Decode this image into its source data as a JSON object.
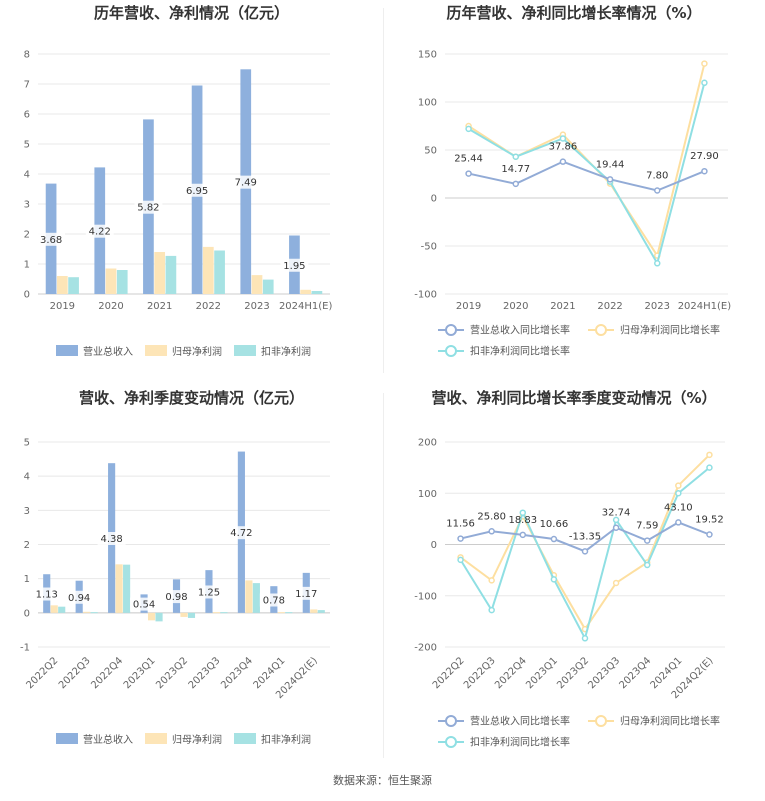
{
  "source": "数据来源：恒生聚源",
  "colors": {
    "revenue": "#8eb0dd",
    "netprofit": "#fde5b7",
    "deducted": "#a6e2e3",
    "revenue_line": "#92abd6",
    "netprofit_line": "#fddfa0",
    "deducted_line": "#8fdfe3"
  },
  "chart_data": [
    {
      "type": "bar",
      "title": "历年营收、净利情况（亿元）",
      "categories": [
        "2019",
        "2020",
        "2021",
        "2022",
        "2023",
        "2024H1(E)"
      ],
      "ylim": [
        0,
        8
      ],
      "yticks": [
        0,
        1,
        2,
        3,
        4,
        5,
        6,
        7,
        8
      ],
      "series": [
        {
          "name": "营业总收入",
          "values": [
            3.68,
            4.22,
            5.82,
            6.95,
            7.49,
            1.95
          ],
          "labels": [
            "3.68",
            "4.22",
            "5.82",
            "6.95",
            "7.49",
            "1.95"
          ]
        },
        {
          "name": "归母净利润",
          "values": [
            0.6,
            0.85,
            1.4,
            1.57,
            0.63,
            0.14
          ]
        },
        {
          "name": "扣非净利润",
          "values": [
            0.56,
            0.8,
            1.27,
            1.45,
            0.48,
            0.1
          ]
        }
      ],
      "legend_position": "bottom"
    },
    {
      "type": "line",
      "title": "历年营收、净利同比增长率情况（%）",
      "categories": [
        "2019",
        "2020",
        "2021",
        "2022",
        "2023",
        "2024H1(E)"
      ],
      "ylim": [
        -100,
        150
      ],
      "yticks": [
        -100,
        -50,
        0,
        50,
        100,
        150
      ],
      "series": [
        {
          "name": "营业总收入同比增长率",
          "values": [
            25.44,
            14.77,
            37.86,
            19.44,
            7.8,
            27.9
          ],
          "labels": [
            "25.44",
            "14.77",
            "37.86",
            "19.44",
            "7.80",
            "27.90"
          ]
        },
        {
          "name": "归母净利润同比增长率",
          "values": [
            75,
            43,
            66,
            15,
            -60,
            140
          ]
        },
        {
          "name": "扣非净利润同比增长率",
          "values": [
            72,
            43,
            62,
            17,
            -68,
            120
          ]
        }
      ],
      "legend_position": "bottom"
    },
    {
      "type": "bar",
      "title": "营收、净利季度变动情况（亿元）",
      "categories": [
        "2022Q2",
        "2022Q3",
        "2022Q4",
        "2023Q1",
        "2023Q2",
        "2023Q3",
        "2023Q4",
        "2024Q1",
        "2024Q2(E)"
      ],
      "ylim": [
        -1,
        5
      ],
      "yticks": [
        -1,
        0,
        1,
        2,
        3,
        4,
        5
      ],
      "series": [
        {
          "name": "营业总收入",
          "values": [
            1.13,
            0.94,
            4.38,
            0.54,
            0.98,
            1.25,
            4.72,
            0.78,
            1.17
          ],
          "labels": [
            "1.13",
            "0.94",
            "4.38",
            "0.54",
            "0.98",
            "1.25",
            "4.72",
            "0.78",
            "1.17"
          ]
        },
        {
          "name": "归母净利润",
          "values": [
            0.22,
            0.03,
            1.42,
            -0.22,
            -0.12,
            0.02,
            0.95,
            0.02,
            0.1
          ]
        },
        {
          "name": "扣非净利润",
          "values": [
            0.18,
            0.02,
            1.41,
            -0.25,
            -0.15,
            0.02,
            0.87,
            0.02,
            0.08
          ]
        }
      ],
      "legend_position": "bottom"
    },
    {
      "type": "line",
      "title": "营收、净利同比增长率季度变动情况（%）",
      "categories": [
        "2022Q2",
        "2022Q3",
        "2022Q4",
        "2023Q1",
        "2023Q2",
        "2023Q3",
        "2023Q4",
        "2024Q1",
        "2024Q2(E)"
      ],
      "ylim": [
        -200,
        200
      ],
      "yticks": [
        -200,
        -100,
        0,
        100,
        200
      ],
      "series": [
        {
          "name": "营业总收入同比增长率",
          "values": [
            11.56,
            25.8,
            18.83,
            10.66,
            -13.35,
            32.74,
            7.59,
            43.1,
            19.52
          ],
          "labels": [
            "11.56",
            "25.80",
            "18.83",
            "10.66",
            "-13.35",
            "32.74",
            "7.59",
            "43.10",
            "19.52"
          ]
        },
        {
          "name": "归母净利润同比增长率",
          "values": [
            -25,
            -70,
            55,
            -60,
            -165,
            -75,
            -35,
            115,
            175
          ]
        },
        {
          "name": "扣非净利润同比增长率",
          "values": [
            -30,
            -128,
            62,
            -68,
            -183,
            48,
            -40,
            100,
            150
          ]
        }
      ],
      "legend_position": "bottom"
    }
  ]
}
